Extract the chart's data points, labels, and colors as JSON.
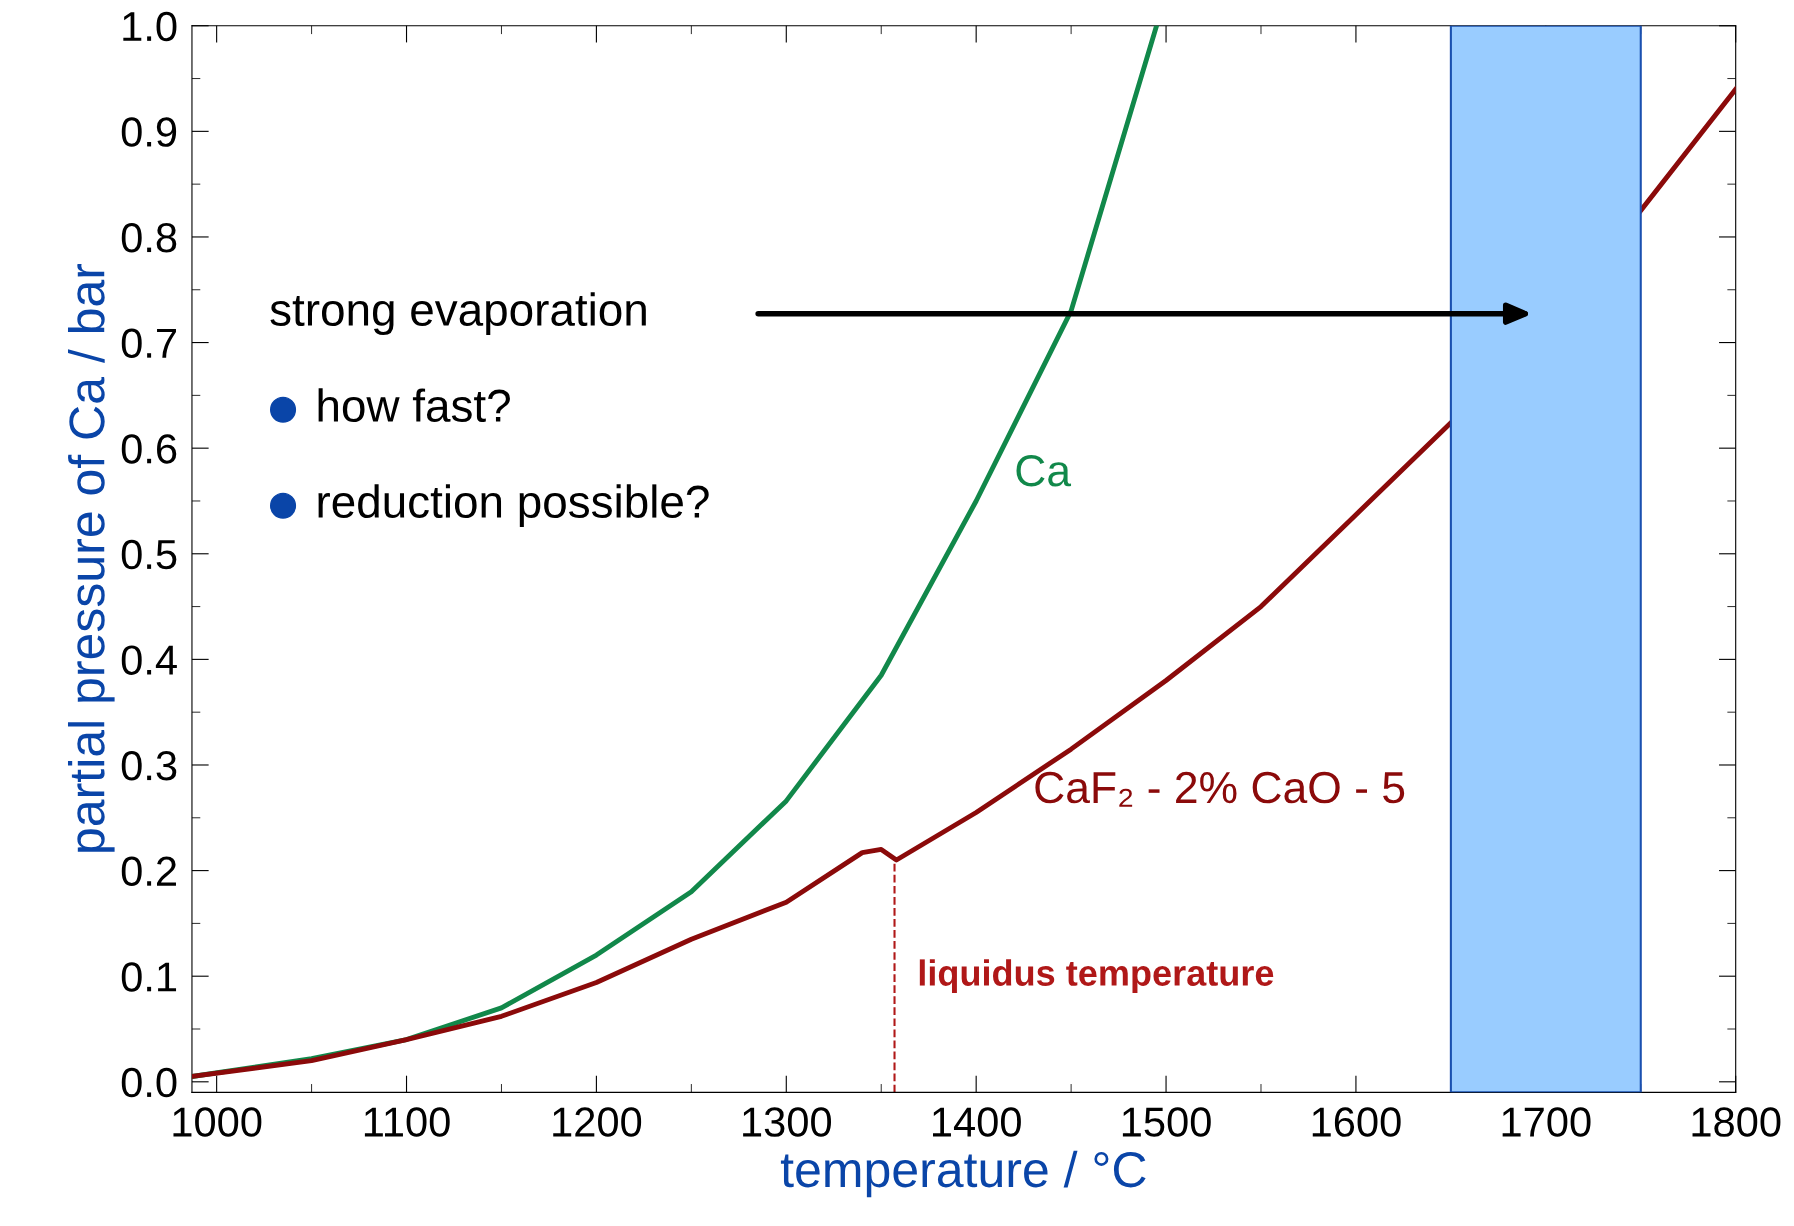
{
  "chart_data": {
    "type": "line",
    "xlabel": "temperature / °C",
    "ylabel": "partial pressure of Ca / bar",
    "series": [
      {
        "name": "Ca",
        "color": "#11884a",
        "x": [
          987,
          1050,
          1100,
          1150,
          1200,
          1250,
          1300,
          1350,
          1400,
          1450,
          1495
        ],
        "values": [
          0.005,
          0.022,
          0.04,
          0.07,
          0.12,
          0.18,
          0.266,
          0.385,
          0.55,
          0.73,
          1.0
        ]
      },
      {
        "name": "CaF₂ - 2% CaO - 5",
        "color": "#8b0a0a",
        "x": [
          987,
          1050,
          1100,
          1150,
          1200,
          1250,
          1300,
          1340,
          1350,
          1358,
          1400,
          1450,
          1500,
          1550,
          1600,
          1650,
          1700,
          1750,
          1800
        ],
        "values": [
          0.005,
          0.02,
          0.04,
          0.062,
          0.094,
          0.135,
          0.17,
          0.217,
          0.22,
          0.21,
          0.255,
          0.315,
          0.38,
          0.45,
          0.537,
          0.624,
          null,
          0.825,
          0.94
        ]
      }
    ],
    "xlim": [
      987,
      1800
    ],
    "xticks": [
      1000,
      1100,
      1200,
      1300,
      1400,
      1500,
      1600,
      1700,
      1800
    ],
    "ylim": [
      -0.01,
      1.0
    ],
    "yticks": [
      {
        "value": 0,
        "label": "0.0"
      },
      0.1,
      0.2,
      0.3,
      0.4,
      0.5,
      0.6,
      0.7,
      0.8,
      0.9,
      {
        "value": 1.0,
        "label": "1.0"
      }
    ],
    "grid": false,
    "legend": false,
    "line_style": "solid",
    "marker": "none",
    "ref_lines": [
      {
        "axis": "x",
        "value": 1357,
        "label": "liquidus temperature",
        "color": "#b01818",
        "line_style": "dashed"
      }
    ],
    "bands": [
      {
        "axis": "x",
        "from": 1650,
        "to": 1750,
        "color": "#99ccff"
      }
    ],
    "annotations": [
      "strong evaporation",
      "how fast?",
      "reduction possible?"
    ]
  }
}
